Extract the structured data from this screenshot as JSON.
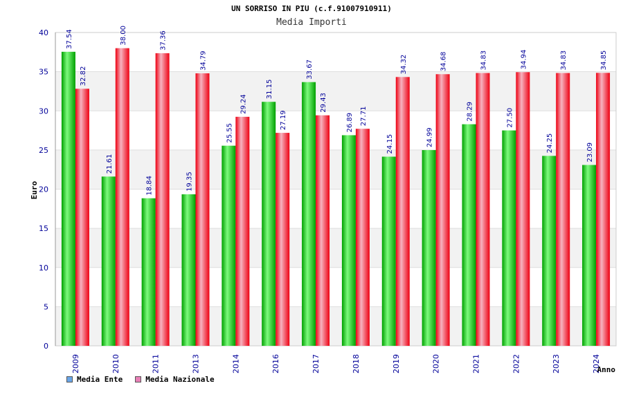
{
  "colors": {
    "ente_light": "#7dfa7d",
    "ente_dark": "#00a000",
    "naz_light": "#f6b3c0",
    "naz_dark": "#ee0011",
    "legend_ente": "#6aa6e8",
    "legend_naz": "#e87fb6",
    "axis_text": "#000099",
    "band": "#f2f2f2"
  },
  "chart_data": {
    "type": "bar",
    "title": "UN SORRISO IN PIU (c.f.91007910911)",
    "subtitle": "Media Importi",
    "xlabel": "Anno",
    "ylabel": "Euro",
    "ylim": [
      0,
      40
    ],
    "yticks": [
      0,
      5,
      10,
      15,
      20,
      25,
      30,
      35,
      40
    ],
    "grid": true,
    "legend_position": "bottom-left",
    "categories": [
      "2009",
      "2010",
      "2011",
      "2013",
      "2014",
      "2016",
      "2017",
      "2018",
      "2019",
      "2020",
      "2021",
      "2022",
      "2023",
      "2024"
    ],
    "series": [
      {
        "name": "Media Ente",
        "values": [
          37.54,
          21.61,
          18.84,
          19.35,
          25.55,
          31.15,
          33.67,
          26.89,
          24.15,
          24.99,
          28.29,
          27.5,
          24.25,
          23.09
        ],
        "labels": [
          "37.54",
          "21.61",
          "18.84",
          "19.35",
          "25.55",
          "31.15",
          "33.67",
          "26.89",
          "24.15",
          "24.99",
          "28.29",
          "27.50",
          "24.25",
          "23.09"
        ]
      },
      {
        "name": "Media Nazionale",
        "values": [
          32.82,
          38.0,
          37.36,
          34.79,
          29.24,
          27.19,
          29.43,
          27.71,
          34.32,
          34.68,
          34.83,
          34.94,
          34.83,
          34.85
        ],
        "labels": [
          "32.82",
          "38.00",
          "37.36",
          "34.79",
          "29.24",
          "27.19",
          "29.43",
          "27.71",
          "34.32",
          "34.68",
          "34.83",
          "34.94",
          "34.83",
          "34.85"
        ]
      }
    ]
  }
}
